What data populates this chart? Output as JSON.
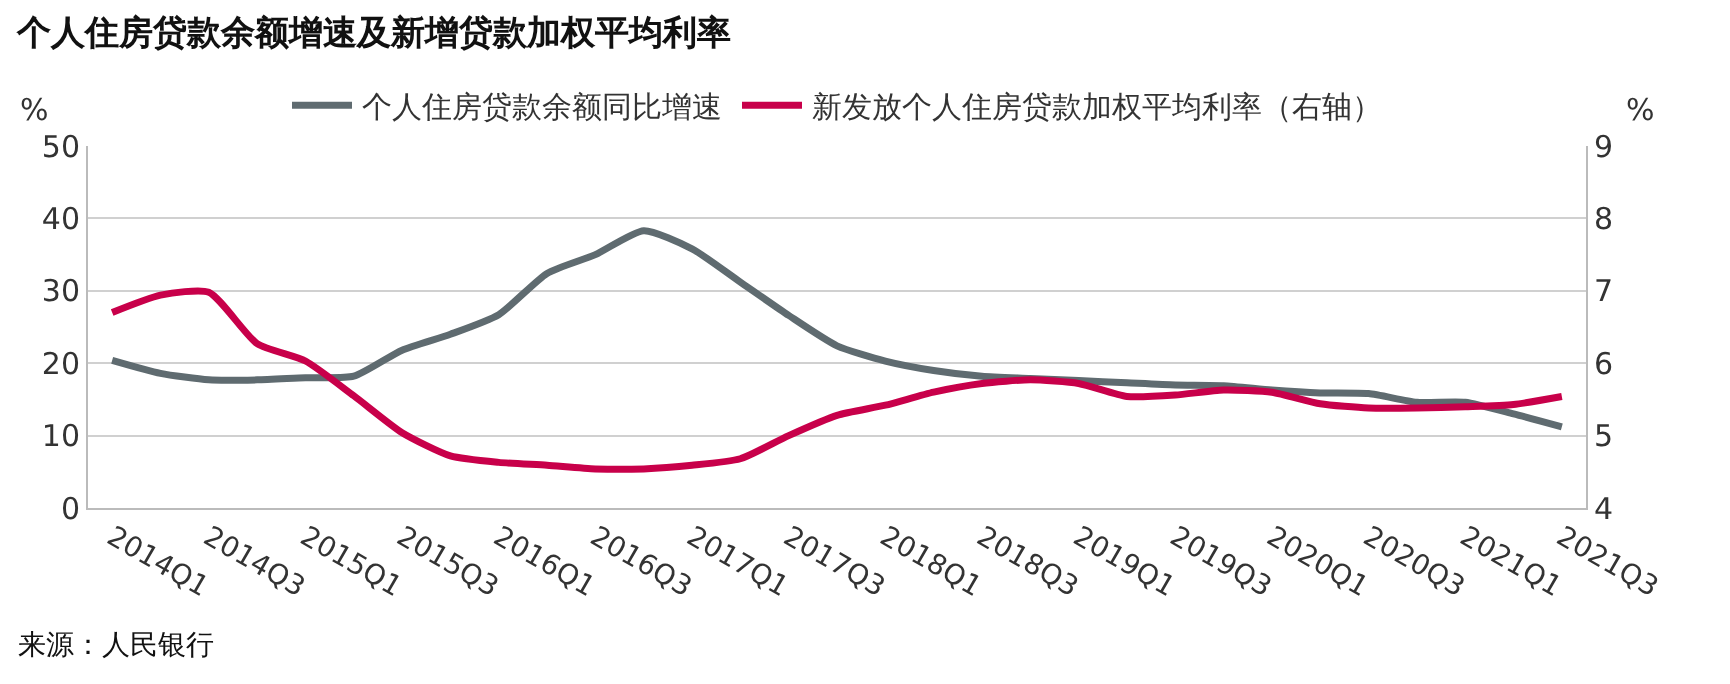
{
  "chart_data": {
    "type": "line",
    "title": "个人住房贷款余额增速及新增贷款加权平均利率",
    "ylabel": "%",
    "y2label": "%",
    "categories": [
      "2014Q1",
      null,
      "2014Q3",
      null,
      "2015Q1",
      null,
      "2015Q3",
      null,
      "2016Q1",
      null,
      "2016Q3",
      null,
      "2017Q1",
      null,
      "2017Q3",
      null,
      "2018Q1",
      null,
      "2018Q3",
      null,
      "2019Q1",
      null,
      "2019Q3",
      null,
      "2020Q1",
      null,
      "2020Q3",
      null,
      "2021Q1",
      null,
      "2021Q3"
    ],
    "series": [
      {
        "name": "个人住房贷款余额同比增速",
        "color": "#5f6b70",
        "values": [
          20.4,
          18.6,
          17.7,
          17.7,
          18.0,
          18.2,
          21.8,
          24.0,
          26.7,
          32.4,
          35.0,
          38.3,
          35.8,
          31.2,
          26.6,
          22.4,
          20.3,
          19.0,
          18.2,
          17.9,
          17.6,
          17.3,
          17.0,
          16.9,
          16.3,
          15.9,
          15.8,
          14.6,
          14.6,
          13.0,
          11.2
        ]
      },
      {
        "name": "新发放个人住房贷款加权平均利率（右轴）",
        "color": "#c8004a",
        "axis": "y2",
        "values": [
          6.7,
          6.94,
          6.98,
          6.27,
          6.03,
          5.55,
          5.04,
          4.72,
          4.63,
          4.59,
          4.54,
          4.54,
          4.59,
          4.68,
          5.0,
          5.28,
          5.42,
          5.6,
          5.72,
          5.77,
          5.72,
          5.54,
          5.56,
          5.63,
          5.6,
          5.44,
          5.38,
          5.38,
          5.4,
          5.43,
          5.54
        ]
      }
    ],
    "ylim": [
      0,
      50
    ],
    "yticks": [
      0,
      10,
      20,
      30,
      40,
      50
    ],
    "y2lim": [
      4,
      9
    ],
    "y2ticks": [
      4,
      5,
      6,
      7,
      8,
      9
    ],
    "grid": "y",
    "legend": "top",
    "annotations": [
      "来源：人民银行"
    ]
  }
}
